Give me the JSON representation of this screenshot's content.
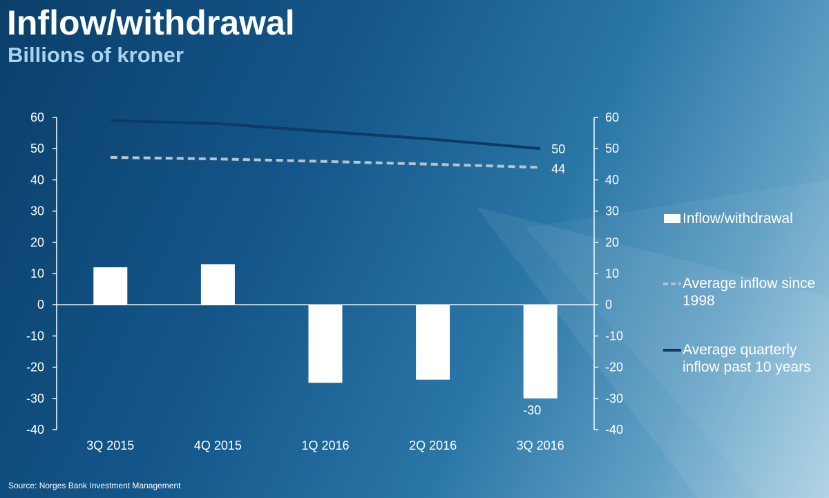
{
  "title": "Inflow/withdrawal",
  "subtitle": "Billions of kroner",
  "source": "Source: Norges Bank Investment Management",
  "colors": {
    "bar": "#ffffff",
    "avg_since_1998": "#b9c3cc",
    "avg_10_years": "#0d3a66",
    "axis": "#ffffff",
    "text": "#ffffff",
    "subtitle": "#a9d3ef"
  },
  "legend": {
    "bar_label": "Inflow/withdrawal",
    "dashed_label": "Average inflow since 1998",
    "solid_label": "Average quarterly inflow past 10 years"
  },
  "chart_data": {
    "type": "bar",
    "categories": [
      "3Q 2015",
      "4Q 2015",
      "1Q 2016",
      "2Q 2016",
      "3Q 2016"
    ],
    "series": [
      {
        "name": "Inflow/withdrawal",
        "type": "bar",
        "values": [
          12,
          13,
          -25,
          -24,
          -30
        ]
      },
      {
        "name": "Average inflow since 1998",
        "type": "line",
        "style": "dashed",
        "values": [
          47.2,
          46.7,
          45.9,
          45.0,
          44
        ]
      },
      {
        "name": "Average quarterly inflow past 10 years",
        "type": "line",
        "style": "solid",
        "values": [
          59,
          58,
          55.5,
          53,
          50
        ]
      }
    ],
    "data_labels": [
      {
        "series": "Average quarterly inflow past 10 years",
        "category": "3Q 2016",
        "text": "50"
      },
      {
        "series": "Average inflow since 1998",
        "category": "3Q 2016",
        "text": "44"
      },
      {
        "series": "Inflow/withdrawal",
        "category": "3Q 2016",
        "text": "-30"
      }
    ],
    "ylim": [
      -40,
      60
    ],
    "yticks": [
      "60",
      "50",
      "40",
      "30",
      "20",
      "10",
      "0",
      "-10",
      "-20",
      "-30",
      "-40"
    ],
    "secondary_axis": true,
    "grid": false,
    "legend_position": "right"
  }
}
